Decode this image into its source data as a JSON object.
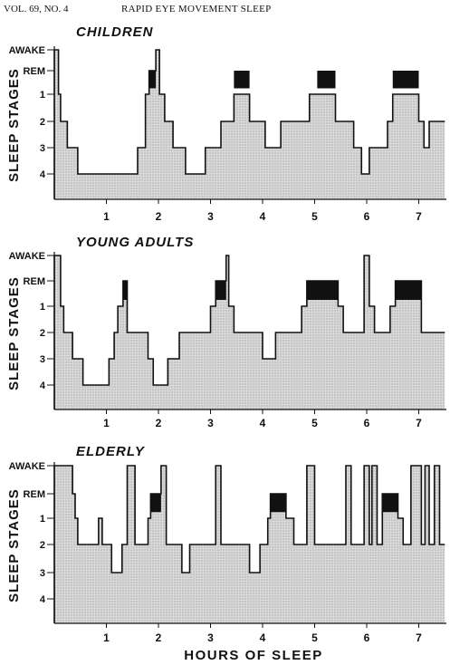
{
  "header": {
    "left": "VOL. 69, NO. 4",
    "center": "RAPID EYE MOVEMENT SLEEP"
  },
  "axis": {
    "ylabel": "SLEEP STAGES",
    "xlabel": "HOURS OF SLEEP",
    "stage_labels": [
      "AWAKE",
      "REM",
      "1",
      "2",
      "3",
      "4"
    ],
    "hour_ticks": [
      "1",
      "2",
      "3",
      "4",
      "5",
      "6",
      "7"
    ]
  },
  "colors": {
    "fill": "#d9d9d9",
    "rem": "#111111",
    "line": "#111111"
  },
  "chart_data": [
    {
      "type": "area",
      "title": "CHILDREN",
      "xlabel": "HOURS OF SLEEP",
      "ylabel": "SLEEP STAGES",
      "xlim": [
        0,
        7.5
      ],
      "stage_order": [
        "AWAKE",
        "REM",
        "1",
        "2",
        "3",
        "4"
      ],
      "hypnogram": [
        [
          0.0,
          "AWAKE"
        ],
        [
          0.08,
          "1"
        ],
        [
          0.12,
          "2"
        ],
        [
          0.25,
          "3"
        ],
        [
          0.45,
          "4"
        ],
        [
          1.6,
          "3"
        ],
        [
          1.75,
          "1"
        ],
        [
          1.82,
          "REM"
        ],
        [
          1.95,
          "AWAKE"
        ],
        [
          2.02,
          "1"
        ],
        [
          2.12,
          "2"
        ],
        [
          2.28,
          "3"
        ],
        [
          2.52,
          "4"
        ],
        [
          2.9,
          "3"
        ],
        [
          3.2,
          "2"
        ],
        [
          3.45,
          "1"
        ],
        [
          3.75,
          "2"
        ],
        [
          4.05,
          "3"
        ],
        [
          4.35,
          "2"
        ],
        [
          4.9,
          "1"
        ],
        [
          5.4,
          "2"
        ],
        [
          5.75,
          "3"
        ],
        [
          5.9,
          "4"
        ],
        [
          6.05,
          "3"
        ],
        [
          6.4,
          "2"
        ],
        [
          6.5,
          "1"
        ],
        [
          7.0,
          "2"
        ],
        [
          7.1,
          "3"
        ],
        [
          7.2,
          "2"
        ],
        [
          7.5,
          "2"
        ]
      ],
      "rem_periods": [
        [
          1.82,
          1.95
        ],
        [
          3.45,
          3.75
        ],
        [
          5.05,
          5.4
        ],
        [
          6.5,
          7.0
        ]
      ]
    },
    {
      "type": "area",
      "title": "YOUNG ADULTS",
      "xlabel": "HOURS OF SLEEP",
      "ylabel": "SLEEP STAGES",
      "xlim": [
        0,
        7.5
      ],
      "stage_order": [
        "AWAKE",
        "REM",
        "1",
        "2",
        "3",
        "4"
      ],
      "hypnogram": [
        [
          0.0,
          "AWAKE"
        ],
        [
          0.12,
          "1"
        ],
        [
          0.18,
          "2"
        ],
        [
          0.35,
          "3"
        ],
        [
          0.55,
          "4"
        ],
        [
          1.05,
          "3"
        ],
        [
          1.15,
          "2"
        ],
        [
          1.22,
          "1"
        ],
        [
          1.32,
          "REM"
        ],
        [
          1.4,
          "2"
        ],
        [
          1.8,
          "3"
        ],
        [
          1.9,
          "4"
        ],
        [
          2.18,
          "3"
        ],
        [
          2.4,
          "2"
        ],
        [
          3.0,
          "1"
        ],
        [
          3.1,
          "REM"
        ],
        [
          3.3,
          "AWAKE"
        ],
        [
          3.35,
          "1"
        ],
        [
          3.45,
          "2"
        ],
        [
          4.0,
          "3"
        ],
        [
          4.25,
          "2"
        ],
        [
          4.75,
          "1"
        ],
        [
          4.85,
          "REM"
        ],
        [
          5.45,
          "1"
        ],
        [
          5.55,
          "2"
        ],
        [
          5.95,
          "AWAKE"
        ],
        [
          6.05,
          "1"
        ],
        [
          6.15,
          "2"
        ],
        [
          6.45,
          "1"
        ],
        [
          6.55,
          "REM"
        ],
        [
          7.05,
          "2"
        ],
        [
          7.5,
          "2"
        ]
      ],
      "rem_periods": [
        [
          1.32,
          1.4
        ],
        [
          3.1,
          3.3
        ],
        [
          4.85,
          5.45
        ],
        [
          6.55,
          7.05
        ]
      ]
    },
    {
      "type": "area",
      "title": "ELDERLY",
      "xlabel": "HOURS OF SLEEP",
      "ylabel": "SLEEP STAGES",
      "xlim": [
        0,
        7.5
      ],
      "stage_order": [
        "AWAKE",
        "REM",
        "1",
        "2",
        "3",
        "4"
      ],
      "hypnogram": [
        [
          0.0,
          "AWAKE"
        ],
        [
          0.35,
          "REM"
        ],
        [
          0.4,
          "1"
        ],
        [
          0.45,
          "2"
        ],
        [
          0.85,
          "1"
        ],
        [
          0.92,
          "2"
        ],
        [
          1.1,
          "3"
        ],
        [
          1.3,
          "2"
        ],
        [
          1.4,
          "AWAKE"
        ],
        [
          1.55,
          "2"
        ],
        [
          1.8,
          "1"
        ],
        [
          1.85,
          "REM"
        ],
        [
          2.05,
          "AWAKE"
        ],
        [
          2.15,
          "2"
        ],
        [
          2.45,
          "3"
        ],
        [
          2.6,
          "2"
        ],
        [
          3.1,
          "AWAKE"
        ],
        [
          3.2,
          "2"
        ],
        [
          3.75,
          "3"
        ],
        [
          3.95,
          "2"
        ],
        [
          4.1,
          "1"
        ],
        [
          4.15,
          "REM"
        ],
        [
          4.45,
          "1"
        ],
        [
          4.6,
          "2"
        ],
        [
          4.85,
          "AWAKE"
        ],
        [
          5.0,
          "2"
        ],
        [
          5.6,
          "AWAKE"
        ],
        [
          5.7,
          "2"
        ],
        [
          5.95,
          "AWAKE"
        ],
        [
          6.05,
          "2"
        ],
        [
          6.1,
          "AWAKE"
        ],
        [
          6.2,
          "2"
        ],
        [
          6.3,
          "REM"
        ],
        [
          6.6,
          "1"
        ],
        [
          6.7,
          "2"
        ],
        [
          6.85,
          "AWAKE"
        ],
        [
          7.05,
          "2"
        ],
        [
          7.12,
          "AWAKE"
        ],
        [
          7.2,
          "2"
        ],
        [
          7.3,
          "AWAKE"
        ],
        [
          7.4,
          "2"
        ],
        [
          7.5,
          "2"
        ]
      ],
      "rem_periods": [
        [
          1.85,
          2.05
        ],
        [
          4.15,
          4.45
        ],
        [
          6.3,
          6.6
        ]
      ]
    }
  ]
}
